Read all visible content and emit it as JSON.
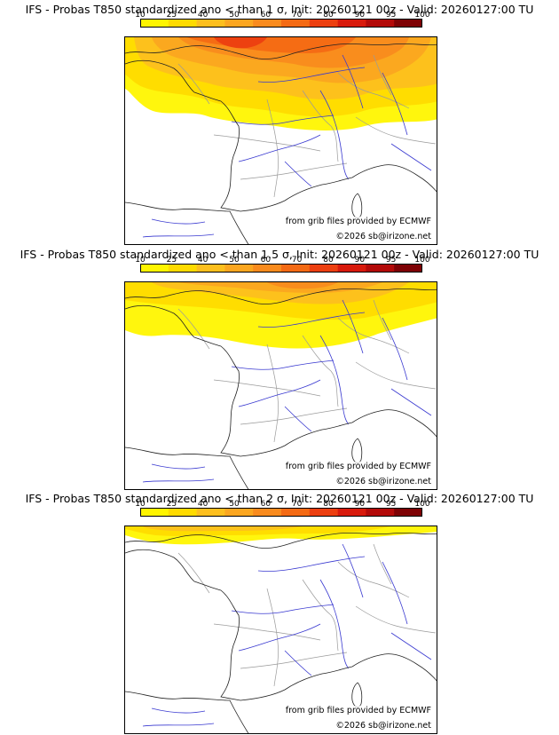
{
  "palette": {
    "bins": [
      "#fff500",
      "#ffdb00",
      "#fdbf1e",
      "#fba620",
      "#f98b1e",
      "#f46a14",
      "#ec3f10",
      "#d81a0c",
      "#b30a09",
      "#7e0205"
    ],
    "colorbar_ticks": [
      "10",
      "25",
      "40",
      "50",
      "60",
      "70",
      "80",
      "90",
      "95",
      "100"
    ]
  },
  "map_style": {
    "coast": "#222222",
    "rivers": "#3838d0",
    "borders": "#9a9a9a"
  },
  "panels": [
    {
      "title": "IFS - Probas T850  standardized ano < than 1 σ, Init: 20260121 00z - Valid: 20260127:00 TU",
      "credit_source": "from grib files provided by ECMWF",
      "credit_copyright": "©2026 sb@irizone.net",
      "probability_coverage": "high"
    },
    {
      "title": "IFS - Probas T850  standardized ano < than 1.5 σ, Init: 20260121 00z - Valid: 20260127:00 TU",
      "credit_source": "from grib files provided by ECMWF",
      "credit_copyright": "©2026 sb@irizone.net",
      "probability_coverage": "medium"
    },
    {
      "title": "IFS - Probas T850  standardized ano < than 2 σ, Init: 20260121 00z - Valid: 20260127:00 TU",
      "credit_source": "from grib files provided by ECMWF",
      "credit_copyright": "©2026 sb@irizone.net",
      "probability_coverage": "low"
    }
  ]
}
